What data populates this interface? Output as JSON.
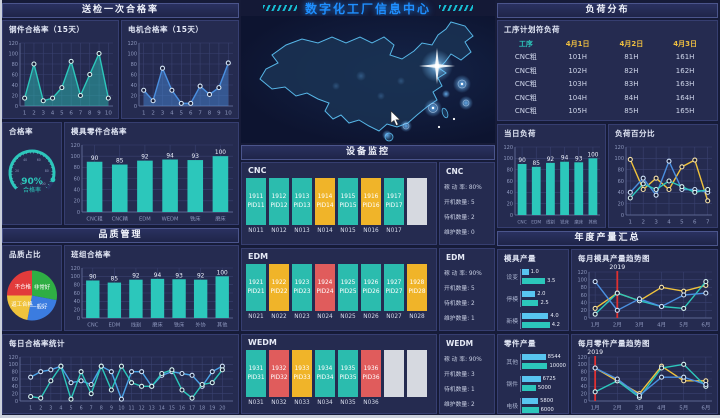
{
  "title": "数字化工厂信息中心",
  "colors": {
    "accent_title": "#1f8fff",
    "teal": "#2cc7bb",
    "blue": "#4a8fe0",
    "light_blue": "#58c5f0",
    "yellow": "#f0b429",
    "red": "#e05c5c",
    "green": "#2fae44",
    "pie_blue": "#3b7ce0",
    "status_run": "#2bbcae",
    "status_standby": "#f0b429",
    "status_repair": "#e05c5c",
    "status_empty": "#d6d9e0",
    "marker_line": "#e03030"
  },
  "left": {
    "inspection_header": "送检一次合格率",
    "quality_header": "品质管理",
    "gauge_panel_title": "合格率"
  },
  "equipment": {
    "header": "设备监控",
    "stat_labels": [
      "稼 动 率:",
      "开机数量:",
      "待机数量:",
      "维护数量:"
    ],
    "groups": [
      {
        "name": "CNC",
        "stats": [
          "80%",
          "5",
          "2",
          "0"
        ],
        "units": [
          {
            "id": "1911",
            "pid": "PID11",
            "n": "N011",
            "status": "run"
          },
          {
            "id": "1912",
            "pid": "PID12",
            "n": "N012",
            "status": "run"
          },
          {
            "id": "1913",
            "pid": "PID13",
            "n": "N013",
            "status": "run"
          },
          {
            "id": "1914",
            "pid": "PID14",
            "n": "N014",
            "status": "standby"
          },
          {
            "id": "1915",
            "pid": "PID15",
            "n": "N015",
            "status": "run"
          },
          {
            "id": "1916",
            "pid": "PID16",
            "n": "N016",
            "status": "standby"
          },
          {
            "id": "1917",
            "pid": "PID17",
            "n": "N017",
            "status": "run"
          },
          {
            "id": "",
            "pid": "",
            "n": "",
            "status": "empty"
          }
        ]
      },
      {
        "name": "EDM",
        "stats": [
          "90%",
          "5",
          "2",
          "1"
        ],
        "units": [
          {
            "id": "1921",
            "pid": "PID21",
            "n": "N021",
            "status": "run"
          },
          {
            "id": "1922",
            "pid": "PID22",
            "n": "N022",
            "status": "standby"
          },
          {
            "id": "1923",
            "pid": "PID23",
            "n": "N023",
            "status": "run"
          },
          {
            "id": "1924",
            "pid": "PID24",
            "n": "N024",
            "status": "repair"
          },
          {
            "id": "1925",
            "pid": "PID25",
            "n": "N025",
            "status": "run"
          },
          {
            "id": "1926",
            "pid": "PID26",
            "n": "N026",
            "status": "run"
          },
          {
            "id": "1927",
            "pid": "PID27",
            "n": "N027",
            "status": "run"
          },
          {
            "id": "1928",
            "pid": "PID28",
            "n": "N028",
            "status": "standby"
          }
        ]
      },
      {
        "name": "WEDM",
        "stats": [
          "90%",
          "3",
          "1",
          "2"
        ],
        "units": [
          {
            "id": "1931",
            "pid": "PID31",
            "n": "N031",
            "status": "run"
          },
          {
            "id": "1932",
            "pid": "PID32",
            "n": "N032",
            "status": "repair"
          },
          {
            "id": "1933",
            "pid": "PID33",
            "n": "N033",
            "status": "standby"
          },
          {
            "id": "1934",
            "pid": "PID34",
            "n": "N034",
            "status": "run"
          },
          {
            "id": "1935",
            "pid": "PID35",
            "n": "N035",
            "status": "run"
          },
          {
            "id": "1936",
            "pid": "PID36",
            "n": "N036",
            "status": "repair"
          },
          {
            "id": "",
            "pid": "",
            "n": "",
            "status": "empty"
          },
          {
            "id": "",
            "pid": "",
            "n": "",
            "status": "empty"
          }
        ]
      }
    ]
  },
  "load": {
    "header": "负荷分布",
    "table": {
      "title": "工序计划符负荷",
      "header": [
        "工序",
        "4月1日",
        "4月2日",
        "4月3日"
      ],
      "rows": [
        [
          "CNC粗",
          "101H",
          "81H",
          "161H"
        ],
        [
          "CNC粗",
          "102H",
          "82H",
          "162H"
        ],
        [
          "CNC粗",
          "103H",
          "83H",
          "163H"
        ],
        [
          "CNC粗",
          "104H",
          "84H",
          "164H"
        ],
        [
          "CNC粗",
          "105H",
          "85H",
          "165H"
        ]
      ]
    }
  },
  "annual": {
    "header": "年度产量汇总"
  },
  "chart_data": {
    "steel": {
      "type": "area",
      "title": "钢件合格率（15天）",
      "x": [
        "1",
        "2",
        "3",
        "4",
        "5",
        "6",
        "7",
        "8",
        "9",
        "10"
      ],
      "ylim": [
        0,
        120
      ],
      "ystep": 20,
      "series": [
        {
          "color": "#2cc7bb",
          "ring": "#d8f3f0",
          "fill": true,
          "values": [
            15,
            80,
            10,
            15,
            35,
            85,
            20,
            60,
            100,
            15
          ]
        }
      ]
    },
    "motor": {
      "type": "area",
      "title": "电机合格率（15天）",
      "x": [
        "1",
        "2",
        "3",
        "4",
        "5",
        "6",
        "7",
        "8",
        "9",
        "10"
      ],
      "ylim": [
        0,
        120
      ],
      "ystep": 20,
      "series": [
        {
          "color": "#4a8fe0",
          "ring": "#d8e8f8",
          "fill": true,
          "values": [
            30,
            10,
            72,
            30,
            5,
            5,
            38,
            22,
            35,
            82
          ]
        }
      ]
    },
    "gauge": {
      "type": "gauge",
      "value": 90,
      "value_text": "90%",
      "label": "合格率",
      "color": "#2cc7bb",
      "ticks": [
        "0",
        "20",
        "40",
        "60",
        "80",
        "100"
      ]
    },
    "mold_parts": {
      "type": "bars",
      "title": "模具零件合格率",
      "categories": [
        "CNC粗",
        "CNC精",
        "EDM",
        "WEDM",
        "铣床",
        "磨床"
      ],
      "values": [
        90,
        85,
        92,
        94,
        93,
        100
      ],
      "ylim": [
        0,
        120
      ],
      "color": "#2cc7bb",
      "xfont": 5.2
    },
    "quality_pie": {
      "type": "pie",
      "title": "品质占比",
      "slices": [
        {
          "label": "非常好",
          "value": 28,
          "color": "#2fae44"
        },
        {
          "label": "一般好",
          "value": 25,
          "color": "#3b7ce0"
        },
        {
          "label": "返工合格",
          "value": 22,
          "color": "#f0c33c"
        },
        {
          "label": "不合格",
          "value": 25,
          "color": "#e23b3b"
        }
      ]
    },
    "team": {
      "type": "bars",
      "title": "班组合格率",
      "categories": [
        "CNC",
        "EDM",
        "线割",
        "磨床",
        "铣床",
        "外协",
        "其他"
      ],
      "values": [
        90,
        85,
        92,
        94,
        93,
        92,
        100
      ],
      "ylim": [
        0,
        120
      ],
      "color": "#2cc7bb",
      "xfont": 5.2
    },
    "daily": {
      "type": "lines",
      "title": "每日合格率统计",
      "x": [
        "1",
        "2",
        "3",
        "4",
        "5",
        "6",
        "7",
        "8",
        "9",
        "10",
        "11",
        "12",
        "13",
        "14",
        "15",
        "16",
        "17",
        "18",
        "19",
        "20"
      ],
      "ylim": [
        0,
        120
      ],
      "xfont": 4.8,
      "series": [
        {
          "color": "#4aa3e8",
          "ring": "#cfe2f8",
          "values": [
            65,
            80,
            85,
            95,
            50,
            55,
            45,
            95,
            80,
            5,
            80,
            80,
            40,
            70,
            80,
            75,
            70,
            40,
            80,
            95
          ]
        },
        {
          "color": "#2cc7bb",
          "ring": "#d8f3f0",
          "values": [
            12,
            8,
            55,
            95,
            5,
            80,
            20,
            95,
            30,
            95,
            50,
            40,
            40,
            75,
            85,
            30,
            8,
            45,
            50,
            85
          ]
        }
      ]
    },
    "day_load": {
      "type": "bars",
      "title": "当日负荷",
      "categories": [
        "CNC",
        "EDM",
        "线割",
        "铣床",
        "磨床",
        "其他"
      ],
      "values": [
        90,
        85,
        92,
        94,
        93,
        100
      ],
      "ylim": [
        0,
        120
      ],
      "color": "#2cc7bb",
      "xfont": 4.4
    },
    "load_pct": {
      "type": "lines",
      "title": "负荷百分比",
      "x": [
        "1",
        "2",
        "3",
        "4",
        "5",
        "6",
        "7"
      ],
      "ylim": [
        0,
        120
      ],
      "series": [
        {
          "color": "#f0c33c",
          "ring": "#f7e2a8",
          "values": [
            98,
            45,
            65,
            45,
            85,
            97,
            25
          ]
        },
        {
          "color": "#4a8fe0",
          "ring": "#cfe2f8",
          "values": [
            40,
            65,
            35,
            95,
            45,
            45,
            40
          ]
        },
        {
          "color": "#2cc7bb",
          "ring": "#d8f3f0",
          "values": [
            30,
            55,
            45,
            60,
            50,
            40,
            45
          ]
        }
      ]
    },
    "mold_output": {
      "type": "hbar",
      "title": "模具产量",
      "colors": [
        "#58c5f0",
        "#2cc7bb"
      ],
      "groups": [
        {
          "label": "设变",
          "values": [
            1.0,
            3.5
          ],
          "labels": [
            "1.0",
            "3.5"
          ]
        },
        {
          "label": "停模",
          "values": [
            2.0,
            2.5
          ],
          "labels": [
            "2.0",
            "2.5"
          ]
        },
        {
          "label": "新模",
          "values": [
            4.0,
            4.2
          ],
          "labels": [
            "4.0",
            "4.2"
          ]
        }
      ]
    },
    "mold_trend": {
      "type": "lines",
      "title": "每月模具产量趋势图",
      "x": [
        "1月",
        "2月",
        "3月",
        "4月",
        "5月",
        "6月"
      ],
      "ylim": [
        0,
        120
      ],
      "marker": {
        "label": "2019",
        "index": 1,
        "color": "#e03030"
      },
      "series": [
        {
          "color": "#f0c33c",
          "ring": "#f7e2a8",
          "values": [
            25,
            65,
            45,
            80,
            70,
            85
          ]
        },
        {
          "color": "#2cc7bb",
          "ring": "#d8f3f0",
          "values": [
            10,
            65,
            45,
            30,
            25,
            95
          ]
        },
        {
          "color": "#4a8fe0",
          "ring": "#cfe2f8",
          "values": [
            95,
            20,
            50,
            30,
            60,
            65
          ]
        }
      ]
    },
    "parts_output": {
      "type": "hbar",
      "title": "零件产量",
      "colors": [
        "#58c5f0",
        "#2cc7bb"
      ],
      "groups": [
        {
          "label": "其他",
          "values": [
            8544,
            10000
          ],
          "labels": [
            "8544",
            "10000"
          ]
        },
        {
          "label": "钢件",
          "values": [
            6725,
            5000
          ],
          "labels": [
            "6725",
            "5000"
          ]
        },
        {
          "label": "电极",
          "values": [
            5800,
            6000
          ],
          "labels": [
            "5800",
            "6000"
          ]
        }
      ]
    },
    "parts_trend": {
      "type": "lines",
      "title": "每月零件产量趋势图",
      "x": [
        "1月",
        "2月",
        "3月",
        "4月",
        "5月",
        "6月"
      ],
      "ylim": [
        0,
        120
      ],
      "marker": {
        "label": "2019",
        "index": 0,
        "color": "#e03030"
      },
      "series": [
        {
          "color": "#f0c33c",
          "ring": "#f7e2a8",
          "values": [
            90,
            55,
            20,
            95,
            55,
            55
          ]
        },
        {
          "color": "#2cc7bb",
          "ring": "#d8f3f0",
          "values": [
            25,
            55,
            10,
            90,
            100,
            40
          ]
        },
        {
          "color": "#4a8fe0",
          "ring": "#cfe2f8",
          "values": [
            90,
            60,
            15,
            65,
            65,
            45
          ]
        }
      ]
    }
  }
}
